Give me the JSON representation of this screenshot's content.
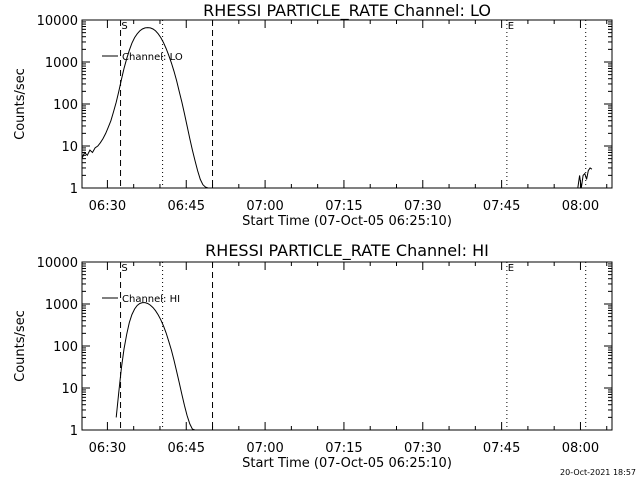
{
  "footer": {
    "timestamp": "20-Oct-2021 18:57"
  },
  "chart_data": [
    {
      "type": "line",
      "title": "RHESSI PARTICLE_RATE Channel: LO",
      "xlabel": "Start Time (07-Oct-05 06:25:10)",
      "ylabel": "Counts/sec",
      "yscale": "log",
      "xlim": [
        "06:25:10",
        "08:06:00"
      ],
      "ylim": [
        1,
        10000
      ],
      "x_ticks": [
        "06:30",
        "06:45",
        "07:00",
        "07:15",
        "07:30",
        "07:45",
        "08:00"
      ],
      "y_ticks": [
        "1",
        "10",
        "100",
        "1000",
        "10000"
      ],
      "legend": "Channel: LO",
      "legend_position": "top-left",
      "markers": [
        {
          "label": "S",
          "time": "06:32:30",
          "style": "dashed"
        },
        {
          "label": "",
          "time": "06:40:30",
          "style": "dotted"
        },
        {
          "label": "",
          "time": "06:50:00",
          "style": "dashed"
        },
        {
          "label": "E",
          "time": "07:46:00",
          "style": "dotted"
        },
        {
          "label": "",
          "time": "08:01:00",
          "style": "dotted"
        }
      ],
      "series": [
        {
          "name": "Channel: LO",
          "segments": [
            {
              "x": [
                "06:25:10",
                "06:25:40",
                "06:26:10",
                "06:26:40",
                "06:27:10",
                "06:27:40",
                "06:28:10",
                "06:28:40",
                "06:29:10",
                "06:29:40",
                "06:30:10",
                "06:30:40",
                "06:31:10",
                "06:31:40",
                "06:32:10",
                "06:32:40",
                "06:33:10",
                "06:33:40",
                "06:34:10",
                "06:34:40",
                "06:35:10",
                "06:35:40",
                "06:36:10",
                "06:36:40",
                "06:37:10",
                "06:37:40",
                "06:38:10",
                "06:38:40",
                "06:39:10",
                "06:39:40",
                "06:40:10",
                "06:40:40",
                "06:41:10",
                "06:41:40",
                "06:42:10",
                "06:42:40",
                "06:43:10",
                "06:43:40",
                "06:44:10",
                "06:44:40",
                "06:45:10",
                "06:45:40",
                "06:46:10",
                "06:46:40",
                "06:47:10",
                "06:47:40",
                "06:48:10",
                "06:48:40",
                "06:49:10"
              ],
              "y": [
                5,
                7,
                6,
                8,
                7,
                9,
                10,
                12,
                15,
                20,
                28,
                40,
                65,
                110,
                200,
                380,
                700,
                1200,
                1900,
                2800,
                3800,
                4700,
                5500,
                6100,
                6500,
                6600,
                6500,
                6100,
                5500,
                4700,
                3800,
                2900,
                2100,
                1450,
                950,
                600,
                360,
                200,
                110,
                58,
                30,
                15,
                8,
                4.5,
                2.6,
                1.6,
                1.2,
                1.05,
                1
              ]
            },
            {
              "x": [
                "07:59:30",
                "07:59:50",
                "08:00:10",
                "08:00:30",
                "08:00:50",
                "08:01:10",
                "08:01:30",
                "08:01:50",
                "08:02:10"
              ],
              "y": [
                1,
                2,
                1,
                2,
                2.2,
                1.6,
                2.6,
                3,
                2.8
              ]
            }
          ]
        }
      ]
    },
    {
      "type": "line",
      "title": "RHESSI PARTICLE_RATE Channel: HI",
      "xlabel": "Start Time (07-Oct-05 06:25:10)",
      "ylabel": "Counts/sec",
      "yscale": "log",
      "xlim": [
        "06:25:10",
        "08:06:00"
      ],
      "ylim": [
        1,
        10000
      ],
      "x_ticks": [
        "06:30",
        "06:45",
        "07:00",
        "07:15",
        "07:30",
        "07:45",
        "08:00"
      ],
      "y_ticks": [
        "1",
        "10",
        "100",
        "1000",
        "10000"
      ],
      "legend": "Channel: HI",
      "legend_position": "top-left",
      "markers": [
        {
          "label": "S",
          "time": "06:32:30",
          "style": "dashed"
        },
        {
          "label": "",
          "time": "06:40:30",
          "style": "dotted"
        },
        {
          "label": "",
          "time": "06:50:00",
          "style": "dashed"
        },
        {
          "label": "E",
          "time": "07:46:00",
          "style": "dotted"
        },
        {
          "label": "",
          "time": "08:01:00",
          "style": "dotted"
        }
      ],
      "series": [
        {
          "name": "Channel: HI",
          "segments": [
            {
              "x": [
                "06:31:40",
                "06:32:10",
                "06:32:40",
                "06:33:10",
                "06:33:40",
                "06:34:10",
                "06:34:40",
                "06:35:10",
                "06:35:40",
                "06:36:10",
                "06:36:40",
                "06:37:10",
                "06:37:40",
                "06:38:10",
                "06:38:40",
                "06:39:10",
                "06:39:40",
                "06:40:10",
                "06:40:40",
                "06:41:10",
                "06:41:40",
                "06:42:10",
                "06:42:40",
                "06:43:10",
                "06:43:40",
                "06:44:10",
                "06:44:40",
                "06:45:10",
                "06:45:40",
                "06:46:10",
                "06:46:40",
                "06:47:10",
                "06:47:40",
                "06:48:10",
                "06:48:40"
              ],
              "y": [
                2,
                8,
                30,
                85,
                190,
                360,
                560,
                760,
                920,
                1030,
                1080,
                1080,
                1030,
                940,
                820,
                690,
                550,
                420,
                300,
                205,
                130,
                80,
                46,
                25,
                13.5,
                7,
                3.8,
                2.2,
                1.4,
                1.05,
                1,
                1,
                1,
                1,
                1
              ]
            }
          ]
        }
      ]
    }
  ]
}
